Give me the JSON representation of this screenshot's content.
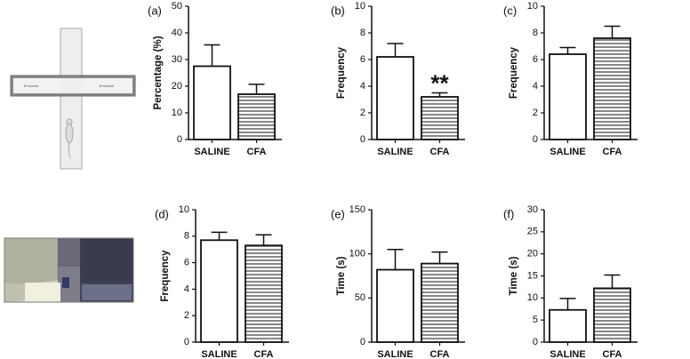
{
  "maze_labels": [
    "Enclosed",
    "Enclosed"
  ],
  "chart_data": [
    {
      "type": "bar",
      "panel_label": "(a)",
      "ylabel": "Percentage (%)",
      "categories": [
        "SALINE",
        "CFA"
      ],
      "values": [
        27.5,
        17
      ],
      "errors": [
        8,
        3.7
      ],
      "bar_styles": [
        "solid",
        "hatched"
      ],
      "ylim": [
        0,
        50
      ],
      "yticks": [
        0,
        10,
        20,
        30,
        40,
        50
      ]
    },
    {
      "type": "bar",
      "panel_label": "(b)",
      "ylabel": "Frequency",
      "categories": [
        "SALINE",
        "CFA"
      ],
      "values": [
        6.2,
        3.2
      ],
      "errors": [
        1.0,
        0.3
      ],
      "value_annotations": [
        null,
        "**"
      ],
      "bar_styles": [
        "solid",
        "hatched"
      ],
      "ylim": [
        0,
        10
      ],
      "yticks": [
        0,
        2,
        4,
        6,
        8,
        10
      ]
    },
    {
      "type": "bar",
      "panel_label": "(c)",
      "ylabel": "Frequency",
      "categories": [
        "SALINE",
        "CFA"
      ],
      "values": [
        6.4,
        7.6
      ],
      "errors": [
        0.5,
        0.9
      ],
      "bar_styles": [
        "solid",
        "hatched"
      ],
      "ylim": [
        0,
        10
      ],
      "yticks": [
        0,
        2,
        4,
        6,
        8,
        10
      ]
    },
    {
      "type": "bar",
      "panel_label": "(d)",
      "ylabel": "Frequency",
      "categories": [
        "SALINE",
        "CFA"
      ],
      "values": [
        7.7,
        7.3
      ],
      "errors": [
        0.6,
        0.8
      ],
      "bar_styles": [
        "solid",
        "hatched"
      ],
      "ylim": [
        0,
        10
      ],
      "yticks": [
        0,
        2,
        4,
        6,
        8,
        10
      ]
    },
    {
      "type": "bar",
      "panel_label": "(e)",
      "ylabel": "Time (s)",
      "categories": [
        "SALINE",
        "CFA"
      ],
      "values": [
        82,
        89
      ],
      "errors": [
        23,
        13
      ],
      "bar_styles": [
        "solid",
        "hatched"
      ],
      "ylim": [
        0,
        150
      ],
      "yticks": [
        0,
        50,
        100,
        150
      ]
    },
    {
      "type": "bar",
      "panel_label": "(f)",
      "ylabel": "Time (s)",
      "categories": [
        "SALINE",
        "CFA"
      ],
      "values": [
        7.3,
        12.2
      ],
      "errors": [
        2.6,
        3
      ],
      "bar_styles": [
        "solid",
        "hatched"
      ],
      "ylim": [
        0,
        30
      ],
      "yticks": [
        0,
        5,
        10,
        15,
        20,
        25,
        30
      ]
    }
  ]
}
